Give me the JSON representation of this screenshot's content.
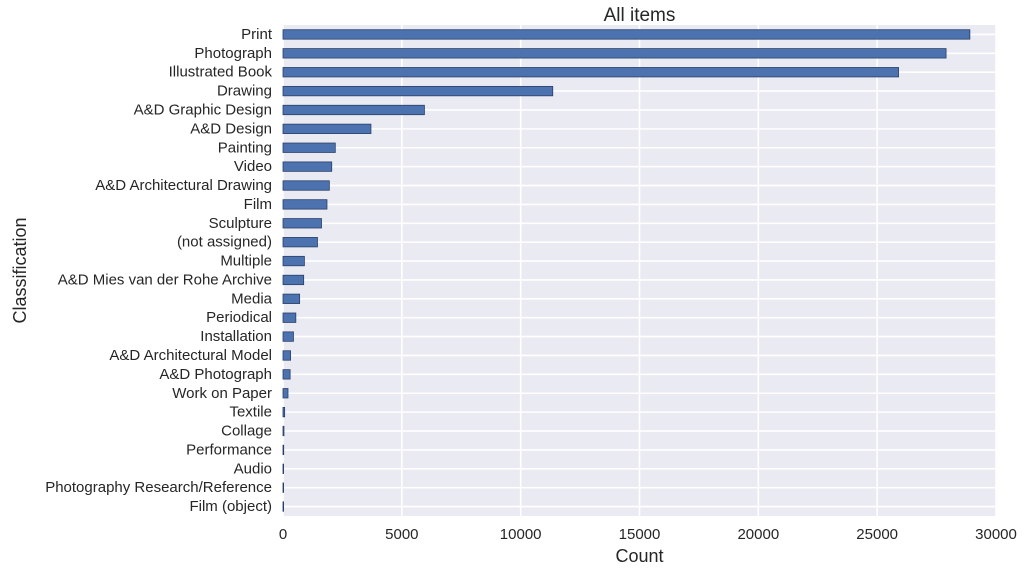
{
  "chart_data": {
    "type": "bar",
    "orientation": "horizontal",
    "title": "All items",
    "xlabel": "Count",
    "ylabel": "Classification",
    "xlim": [
      0,
      30000
    ],
    "xticks": [
      0,
      5000,
      10000,
      15000,
      20000,
      25000,
      30000
    ],
    "xtick_labels": [
      "0",
      "5000",
      "10000",
      "15000",
      "20000",
      "25000",
      "30000"
    ],
    "grid": true,
    "legend": "none",
    "colors": {
      "bar": "#4c72b0",
      "bar_edge": "#2a3f66",
      "plot_background": "#eaeaf2",
      "grid": "#ffffff"
    },
    "categories": [
      "Print",
      "Photograph",
      "Illustrated Book",
      "Drawing",
      "A&D Graphic Design",
      "A&D Design",
      "Painting",
      "Video",
      "A&D Architectural Drawing",
      "Film",
      "Sculpture",
      "(not assigned)",
      "Multiple",
      "A&D Mies van der Rohe Archive",
      "Media",
      "Periodical",
      "Installation",
      "A&D Architectural Model",
      "A&D Photograph",
      "Work on Paper",
      "Textile",
      "Collage",
      "Performance",
      "Audio",
      "Photography Research/Reference",
      "Film (object)"
    ],
    "values": [
      28900,
      27900,
      25900,
      11350,
      5950,
      3700,
      2200,
      2050,
      1950,
      1850,
      1620,
      1450,
      900,
      870,
      700,
      540,
      440,
      320,
      300,
      210,
      70,
      40,
      30,
      25,
      20,
      15
    ]
  }
}
